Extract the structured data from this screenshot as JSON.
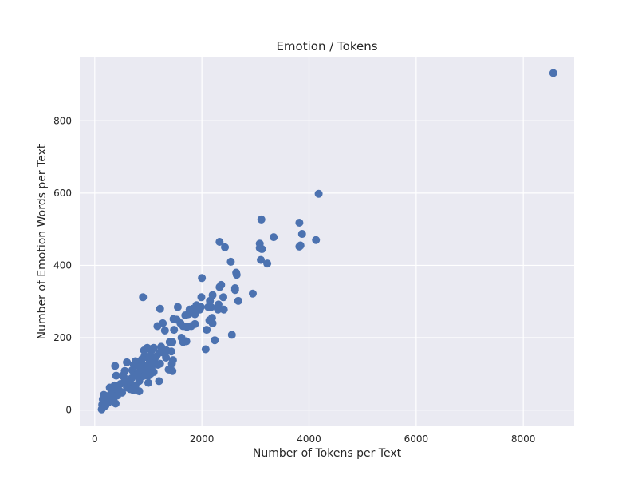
{
  "chart_data": {
    "type": "scatter",
    "title": "Emotion / Tokens",
    "xlabel": "Number of Tokens per Text",
    "ylabel": "Number of Emotion Words per Text",
    "xlim": [
      -280,
      8950
    ],
    "ylim": [
      -45,
      975
    ],
    "xticks": [
      0,
      2000,
      4000,
      6000,
      8000
    ],
    "yticks": [
      0,
      200,
      400,
      600,
      800
    ],
    "grid": true,
    "background": "#eaeaf2",
    "grid_color": "#ffffff",
    "marker_color": "#4c72b0",
    "series": [
      {
        "points": [
          [
            8560,
            932
          ],
          [
            4180,
            598
          ],
          [
            4130,
            470
          ],
          [
            3870,
            487
          ],
          [
            3820,
            518
          ],
          [
            3820,
            452
          ],
          [
            3840,
            455
          ],
          [
            3110,
            527
          ],
          [
            3340,
            478
          ],
          [
            3080,
            460
          ],
          [
            3080,
            448
          ],
          [
            3120,
            445
          ],
          [
            3100,
            415
          ],
          [
            3220,
            405
          ],
          [
            2950,
            322
          ],
          [
            2680,
            302
          ],
          [
            2640,
            380
          ],
          [
            2650,
            374
          ],
          [
            2620,
            337
          ],
          [
            2620,
            332
          ],
          [
            2540,
            410
          ],
          [
            2560,
            208
          ],
          [
            2430,
            450
          ],
          [
            2330,
            465
          ],
          [
            2410,
            278
          ],
          [
            2400,
            312
          ],
          [
            2360,
            346
          ],
          [
            2330,
            340
          ],
          [
            2310,
            292
          ],
          [
            2300,
            278
          ],
          [
            2200,
            318
          ],
          [
            2150,
            302
          ],
          [
            2170,
            285
          ],
          [
            2120,
            285
          ],
          [
            2190,
            255
          ],
          [
            2200,
            240
          ],
          [
            2140,
            248
          ],
          [
            2240,
            193
          ],
          [
            2090,
            222
          ],
          [
            2070,
            168
          ],
          [
            2000,
            365
          ],
          [
            1990,
            312
          ],
          [
            1980,
            285
          ],
          [
            1960,
            278
          ],
          [
            1900,
            290
          ],
          [
            1870,
            265
          ],
          [
            1830,
            280
          ],
          [
            1770,
            278
          ],
          [
            1750,
            265
          ],
          [
            1690,
            262
          ],
          [
            1870,
            238
          ],
          [
            1800,
            232
          ],
          [
            1720,
            230
          ],
          [
            1650,
            232
          ],
          [
            1600,
            240
          ],
          [
            1550,
            285
          ],
          [
            1530,
            250
          ],
          [
            1470,
            252
          ],
          [
            1480,
            222
          ],
          [
            1620,
            200
          ],
          [
            1650,
            188
          ],
          [
            1710,
            190
          ],
          [
            1450,
            188
          ],
          [
            1400,
            188
          ],
          [
            1430,
            162
          ],
          [
            1460,
            138
          ],
          [
            1440,
            128
          ],
          [
            1380,
            112
          ],
          [
            1450,
            108
          ],
          [
            1310,
            220
          ],
          [
            1270,
            240
          ],
          [
            1220,
            280
          ],
          [
            1170,
            232
          ],
          [
            1260,
            168
          ],
          [
            1290,
            158
          ],
          [
            1200,
            158
          ],
          [
            1180,
            125
          ],
          [
            1220,
            128
          ],
          [
            1200,
            80
          ],
          [
            1100,
            172
          ],
          [
            1060,
            165
          ],
          [
            1040,
            150
          ],
          [
            980,
            172
          ],
          [
            920,
            165
          ],
          [
            930,
            150
          ],
          [
            1010,
            142
          ],
          [
            1070,
            140
          ],
          [
            1030,
            132
          ],
          [
            960,
            122
          ],
          [
            900,
            312
          ],
          [
            880,
            140
          ],
          [
            860,
            128
          ],
          [
            840,
            118
          ],
          [
            810,
            100
          ],
          [
            830,
            80
          ],
          [
            830,
            52
          ],
          [
            870,
            92
          ],
          [
            910,
            112
          ],
          [
            930,
            95
          ],
          [
            1000,
            95
          ],
          [
            1060,
            118
          ],
          [
            1100,
            105
          ],
          [
            760,
            135
          ],
          [
            730,
            125
          ],
          [
            690,
            88
          ],
          [
            650,
            72
          ],
          [
            660,
            58
          ],
          [
            600,
            132
          ],
          [
            560,
            108
          ],
          [
            540,
            92
          ],
          [
            520,
            95
          ],
          [
            480,
            72
          ],
          [
            470,
            52
          ],
          [
            440,
            48
          ],
          [
            420,
            55
          ],
          [
            400,
            95
          ],
          [
            380,
            122
          ],
          [
            370,
            68
          ],
          [
            330,
            52
          ],
          [
            310,
            42
          ],
          [
            280,
            62
          ],
          [
            250,
            38
          ],
          [
            230,
            28
          ],
          [
            200,
            35
          ],
          [
            180,
            22
          ],
          [
            170,
            42
          ],
          [
            150,
            30
          ],
          [
            140,
            15
          ],
          [
            130,
            2
          ],
          [
            200,
            12
          ],
          [
            250,
            20
          ],
          [
            300,
            45
          ],
          [
            390,
            18
          ],
          [
            350,
            30
          ],
          [
            420,
            40
          ],
          [
            510,
            48
          ],
          [
            560,
            78
          ],
          [
            600,
            62
          ],
          [
            640,
            80
          ],
          [
            700,
            110
          ],
          [
            740,
            95
          ],
          [
            760,
            68
          ],
          [
            720,
            55
          ],
          [
            800,
            98
          ],
          [
            960,
            110
          ],
          [
            1000,
            75
          ],
          [
            1040,
            100
          ],
          [
            1130,
            130
          ],
          [
            1150,
            148
          ],
          [
            1240,
            175
          ],
          [
            1330,
            145
          ],
          [
            1340,
            165
          ]
        ]
      }
    ]
  }
}
